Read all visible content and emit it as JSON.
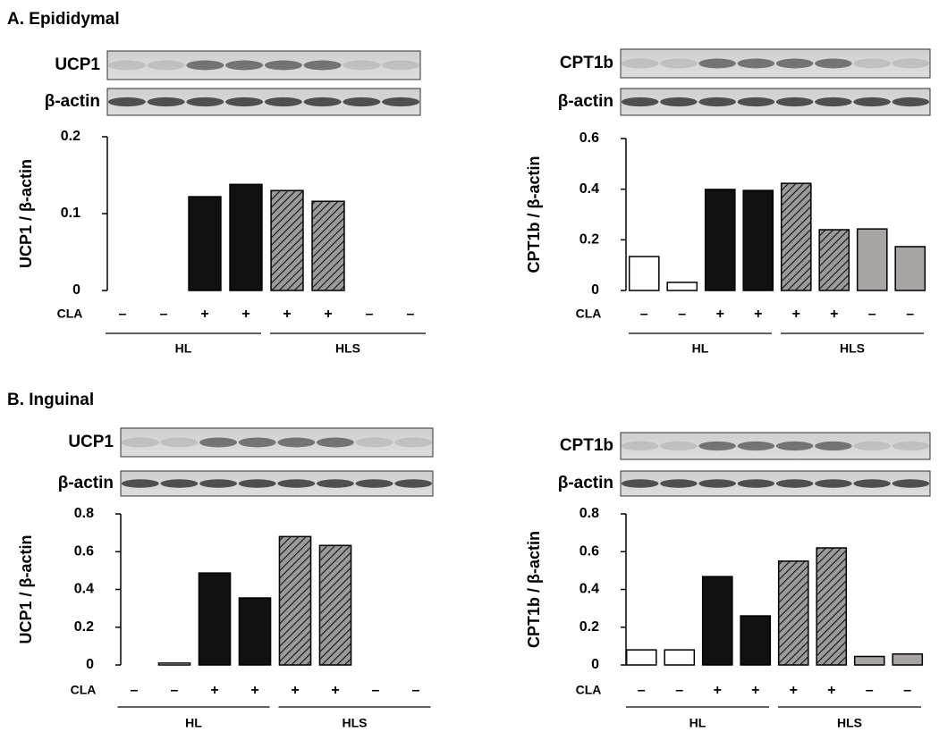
{
  "headings": [
    "A. Epididymal",
    "B. Inguinal"
  ],
  "chart_data": [
    {
      "type": "bar",
      "blots": [
        "UCP1",
        "β-actin"
      ],
      "y_label": "UCP1 / β-actin",
      "categories": [
        "–",
        "–",
        "+",
        "+",
        "+",
        "+",
        "–",
        "–"
      ],
      "category_title": "CLA",
      "group_labels": [
        "HL",
        "HLS"
      ],
      "values": [
        0,
        0,
        0.122,
        0.138,
        0.13,
        0.116,
        0,
        0
      ],
      "fills": [
        "#ffffff",
        "#ffffff",
        "#111111",
        "#111111",
        "#999999",
        "#999999",
        "#aaa5a5",
        "#aaa5a5"
      ],
      "hatch": [
        false,
        false,
        false,
        false,
        true,
        true,
        false,
        false
      ],
      "ylim": [
        0,
        0.2
      ],
      "yticks": [
        0,
        0.1,
        0.2
      ]
    },
    {
      "type": "bar",
      "blots": [
        "CPT1b",
        "β-actin"
      ],
      "y_label": "CPT1b / β-actin",
      "categories": [
        "–",
        "–",
        "+",
        "+",
        "+",
        "+",
        "–",
        "–"
      ],
      "category_title": "CLA",
      "group_labels": [
        "HL",
        "HLS"
      ],
      "values": [
        0.134,
        0.032,
        0.399,
        0.395,
        0.423,
        0.24,
        0.243,
        0.173
      ],
      "fills": [
        "#ffffff",
        "#ffffff",
        "#111111",
        "#111111",
        "#999999",
        "#999999",
        "#aaa5a5",
        "#aaa5a5"
      ],
      "hatch": [
        false,
        false,
        false,
        false,
        true,
        true,
        false,
        false
      ],
      "ylim": [
        0,
        0.6
      ],
      "yticks": [
        0,
        0.2,
        0.4,
        0.6
      ]
    },
    {
      "type": "bar",
      "blots": [
        "UCP1",
        "β-actin"
      ],
      "y_label": "UCP1 / β-actin",
      "categories": [
        "–",
        "–",
        "+",
        "+",
        "+",
        "+",
        "–",
        "–"
      ],
      "category_title": "CLA",
      "group_labels": [
        "HL",
        "HLS"
      ],
      "values": [
        0,
        0.01,
        0.487,
        0.355,
        0.68,
        0.633,
        0,
        0
      ],
      "fills": [
        "#ffffff",
        "#ffffff",
        "#111111",
        "#111111",
        "#999999",
        "#999999",
        "#aaa5a5",
        "#aaa5a5"
      ],
      "hatch": [
        false,
        false,
        false,
        false,
        true,
        true,
        false,
        false
      ],
      "ylim": [
        0,
        0.8
      ],
      "yticks": [
        0,
        0.2,
        0.4,
        0.6,
        0.8
      ]
    },
    {
      "type": "bar",
      "blots": [
        "CPT1b",
        "β-actin"
      ],
      "y_label": "CPT1b / β-actin",
      "categories": [
        "–",
        "–",
        "+",
        "+",
        "+",
        "+",
        "–",
        "–"
      ],
      "category_title": "CLA",
      "group_labels": [
        "HL",
        "HLS"
      ],
      "values": [
        0.08,
        0.08,
        0.468,
        0.26,
        0.55,
        0.62,
        0.045,
        0.058
      ],
      "fills": [
        "#ffffff",
        "#ffffff",
        "#111111",
        "#111111",
        "#999999",
        "#999999",
        "#aaa5a5",
        "#aaa5a5"
      ],
      "hatch": [
        false,
        false,
        false,
        false,
        true,
        true,
        false,
        false
      ],
      "ylim": [
        0,
        0.8
      ],
      "yticks": [
        0,
        0.2,
        0.4,
        0.6,
        0.8
      ]
    }
  ]
}
